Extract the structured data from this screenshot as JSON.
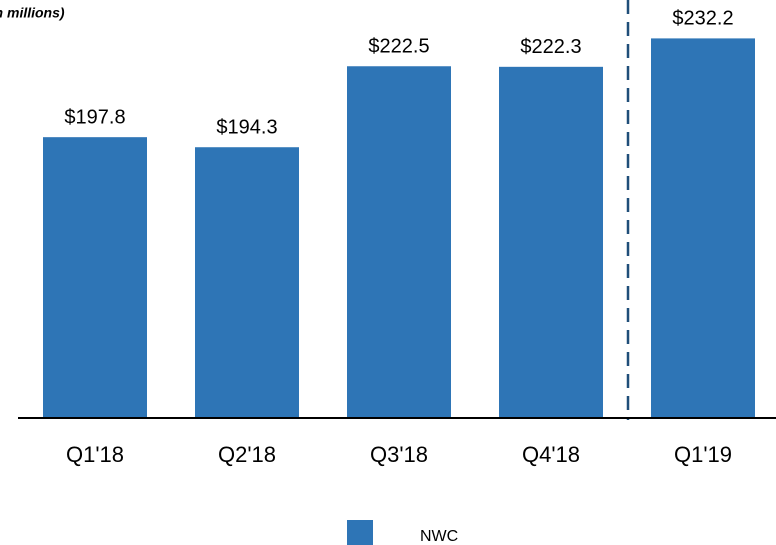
{
  "chart_data": {
    "type": "bar",
    "title": "(in millions)",
    "categories": [
      "Q1'18",
      "Q2'18",
      "Q3'18",
      "Q4'18",
      "Q1'19"
    ],
    "series": [
      {
        "name": "NWC",
        "color": "#2e75b6",
        "values": [
          197.8,
          194.3,
          222.5,
          222.3,
          232.2
        ],
        "value_labels": [
          "$197.8",
          "$194.3",
          "$222.5",
          "$222.3",
          "$232.2"
        ]
      }
    ],
    "ylim": [
      100,
      240
    ],
    "legend": "bottom"
  }
}
